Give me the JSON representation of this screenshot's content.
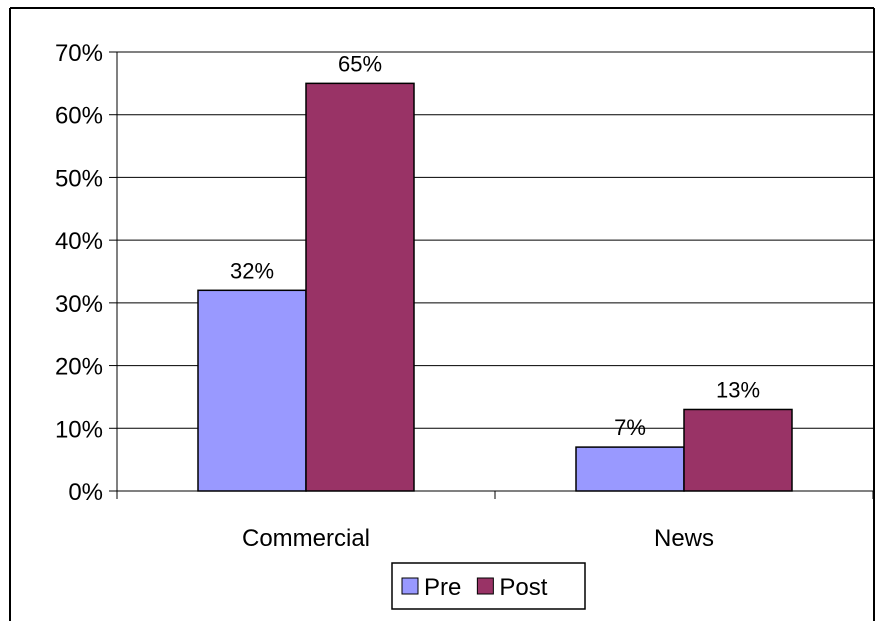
{
  "chart_data": {
    "type": "bar",
    "categories": [
      "Commercial",
      "News"
    ],
    "series": [
      {
        "name": "Pre",
        "values": [
          32,
          7
        ],
        "color": "#9999ff"
      },
      {
        "name": "Post",
        "values": [
          65,
          13
        ],
        "color": "#993366"
      }
    ],
    "data_labels": [
      [
        "32%",
        "7%"
      ],
      [
        "65%",
        "13%"
      ]
    ],
    "ylim": [
      0,
      70
    ],
    "yticks": [
      0,
      10,
      20,
      30,
      40,
      50,
      60,
      70
    ],
    "ytick_labels": [
      "0%",
      "10%",
      "20%",
      "30%",
      "40%",
      "50%",
      "60%",
      "70%"
    ],
    "grid": true,
    "legend_position": "bottom",
    "title": "",
    "xlabel": "",
    "ylabel": ""
  }
}
